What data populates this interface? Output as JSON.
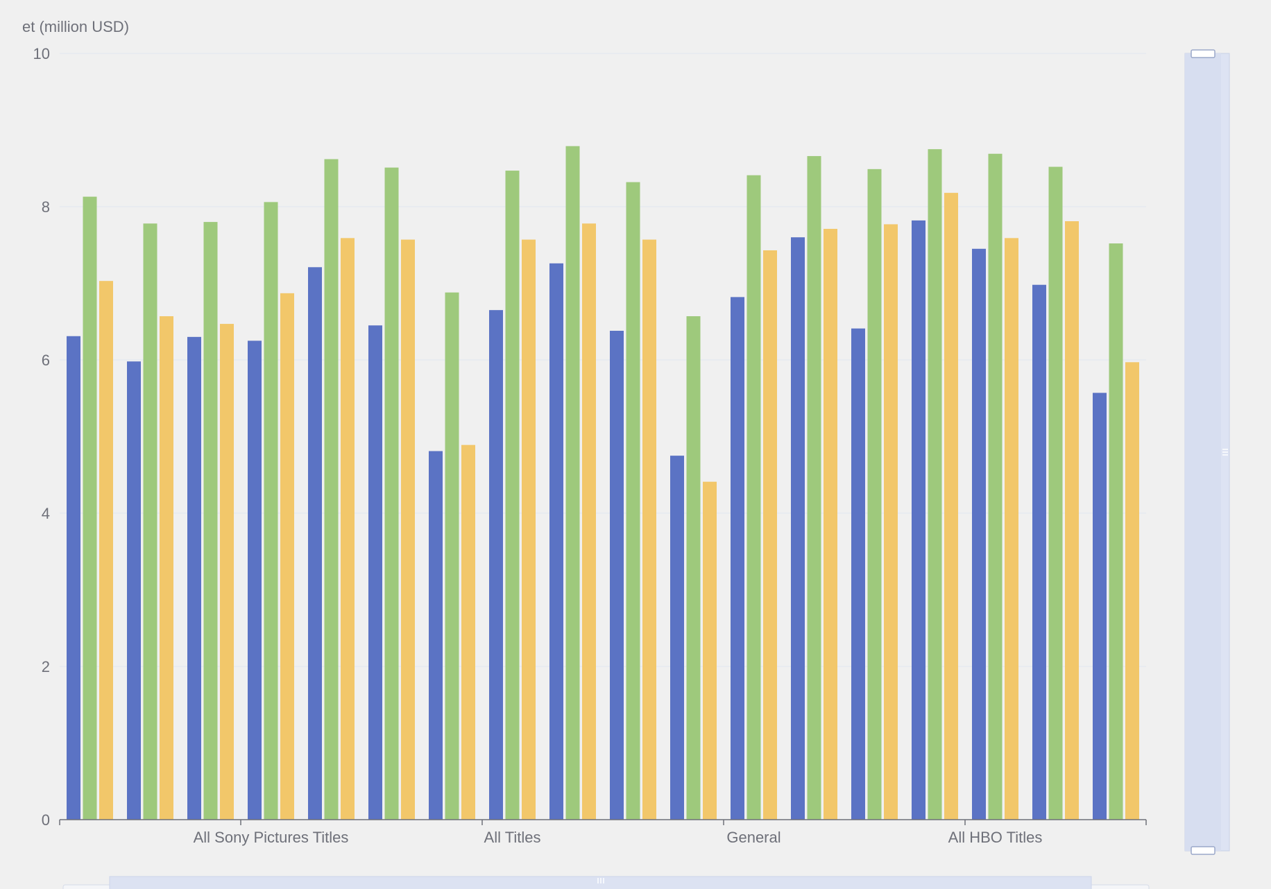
{
  "chart_data": {
    "type": "bar",
    "ylabel": "et (million USD)",
    "ylim": [
      0,
      10
    ],
    "yticks": [
      "0",
      "2",
      "4",
      "6",
      "8",
      "10"
    ],
    "grid": true,
    "category_labels": [
      {
        "text": "All Sony Pictures Titles",
        "group_index": 3.5
      },
      {
        "text": "All Titles",
        "group_index": 7.5
      },
      {
        "text": "General",
        "group_index": 11.5
      },
      {
        "text": "All HBO Titles",
        "group_index": 15.5
      }
    ],
    "group_count": 18,
    "series": [
      {
        "color": "#5b73c4",
        "values": [
          6.31,
          5.98,
          6.3,
          6.25,
          7.21,
          6.45,
          4.81,
          6.65,
          7.26,
          6.38,
          4.75,
          6.82,
          7.6,
          6.41,
          7.82,
          7.45,
          6.98,
          5.57
        ]
      },
      {
        "color": "#9ec97c",
        "values": [
          8.13,
          7.78,
          7.8,
          8.06,
          8.62,
          8.51,
          6.88,
          8.47,
          8.79,
          8.32,
          6.57,
          8.41,
          8.66,
          8.49,
          8.75,
          8.69,
          8.52,
          7.52
        ]
      },
      {
        "color": "#f2c76a",
        "values": [
          7.03,
          6.57,
          6.47,
          6.87,
          7.59,
          7.57,
          4.89,
          7.57,
          7.78,
          7.57,
          4.41,
          7.43,
          7.71,
          7.77,
          8.18,
          7.59,
          7.81,
          5.97
        ]
      }
    ],
    "dataZoom": {
      "orientation": [
        "horizontal",
        "vertical"
      ]
    }
  }
}
